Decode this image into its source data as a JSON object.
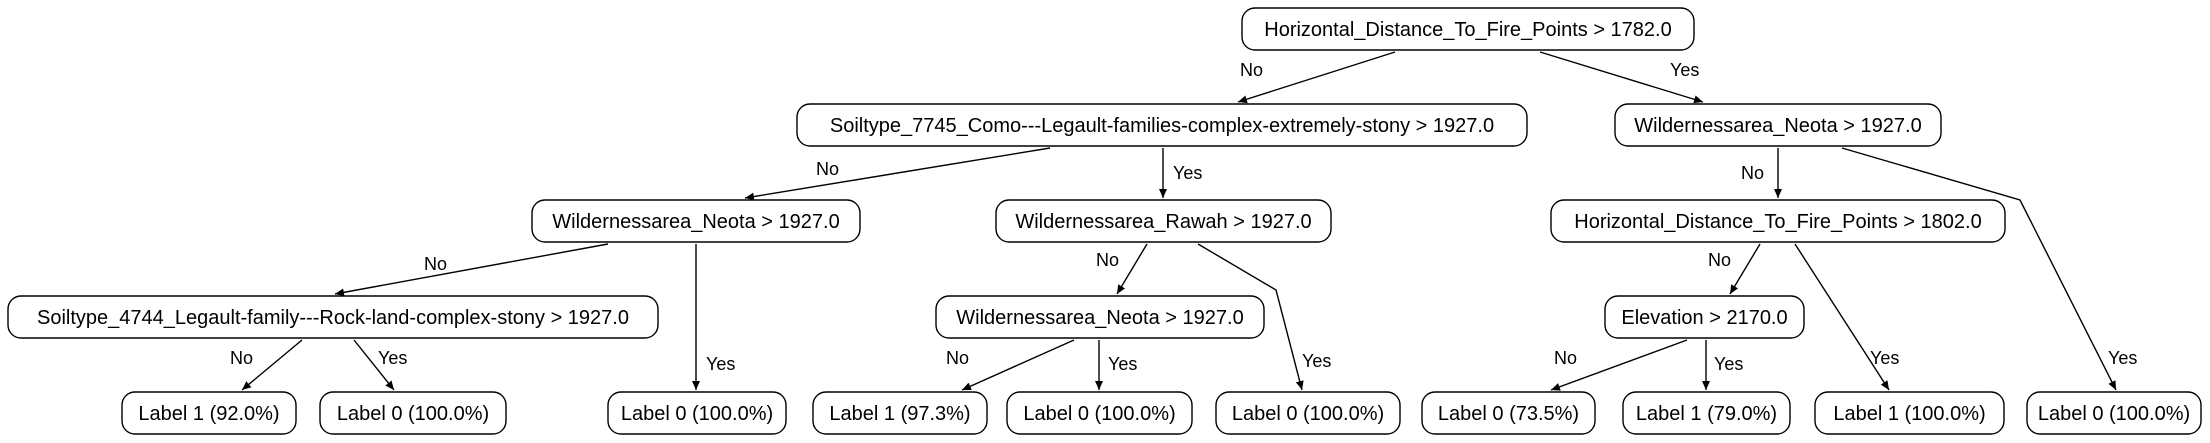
{
  "diagram": {
    "nodes": [
      {
        "id": "n0",
        "text": "Horizontal_Distance_To_Fire_Points > 1782.0"
      },
      {
        "id": "n1",
        "text": "Soiltype_7745_Como---Legault-families-complex-extremely-stony > 1927.0"
      },
      {
        "id": "n2",
        "text": "Wildernessarea_Neota > 1927.0"
      },
      {
        "id": "n3",
        "text": "Wildernessarea_Neota > 1927.0"
      },
      {
        "id": "n4",
        "text": "Wildernessarea_Rawah > 1927.0"
      },
      {
        "id": "n5",
        "text": "Horizontal_Distance_To_Fire_Points > 1802.0"
      },
      {
        "id": "n6",
        "text": "Soiltype_4744_Legault-family---Rock-land-complex-stony > 1927.0"
      },
      {
        "id": "n7",
        "text": "Wildernessarea_Neota > 1927.0"
      },
      {
        "id": "n8",
        "text": "Elevation > 2170.0"
      },
      {
        "id": "l1",
        "text": "Label 1 (92.0%)"
      },
      {
        "id": "l2",
        "text": "Label 0 (100.0%)"
      },
      {
        "id": "l3",
        "text": "Label 0 (100.0%)"
      },
      {
        "id": "l4",
        "text": "Label 1 (97.3%)"
      },
      {
        "id": "l5",
        "text": "Label 0 (100.0%)"
      },
      {
        "id": "l6",
        "text": "Label 0 (100.0%)"
      },
      {
        "id": "l7",
        "text": "Label 0 (73.5%)"
      },
      {
        "id": "l8",
        "text": "Label 1 (79.0%)"
      },
      {
        "id": "l9",
        "text": "Label 1 (100.0%)"
      },
      {
        "id": "l10",
        "text": "Label 0 (100.0%)"
      }
    ],
    "edges": [
      {
        "from": "n0",
        "to": "n1",
        "label": "No"
      },
      {
        "from": "n0",
        "to": "n2",
        "label": "Yes"
      },
      {
        "from": "n1",
        "to": "n3",
        "label": "No"
      },
      {
        "from": "n1",
        "to": "n4",
        "label": "Yes"
      },
      {
        "from": "n2",
        "to": "n5",
        "label": "No"
      },
      {
        "from": "n2",
        "to": "l10",
        "label": "Yes"
      },
      {
        "from": "n3",
        "to": "n6",
        "label": "No"
      },
      {
        "from": "n3",
        "to": "l3",
        "label": "Yes"
      },
      {
        "from": "n4",
        "to": "n7",
        "label": "No"
      },
      {
        "from": "n4",
        "to": "l6",
        "label": "Yes"
      },
      {
        "from": "n5",
        "to": "n8",
        "label": "No"
      },
      {
        "from": "n5",
        "to": "l9",
        "label": "Yes"
      },
      {
        "from": "n6",
        "to": "l1",
        "label": "No"
      },
      {
        "from": "n6",
        "to": "l2",
        "label": "Yes"
      },
      {
        "from": "n7",
        "to": "l4",
        "label": "No"
      },
      {
        "from": "n7",
        "to": "l5",
        "label": "Yes"
      },
      {
        "from": "n8",
        "to": "l7",
        "label": "No"
      },
      {
        "from": "n8",
        "to": "l8",
        "label": "Yes"
      }
    ]
  }
}
